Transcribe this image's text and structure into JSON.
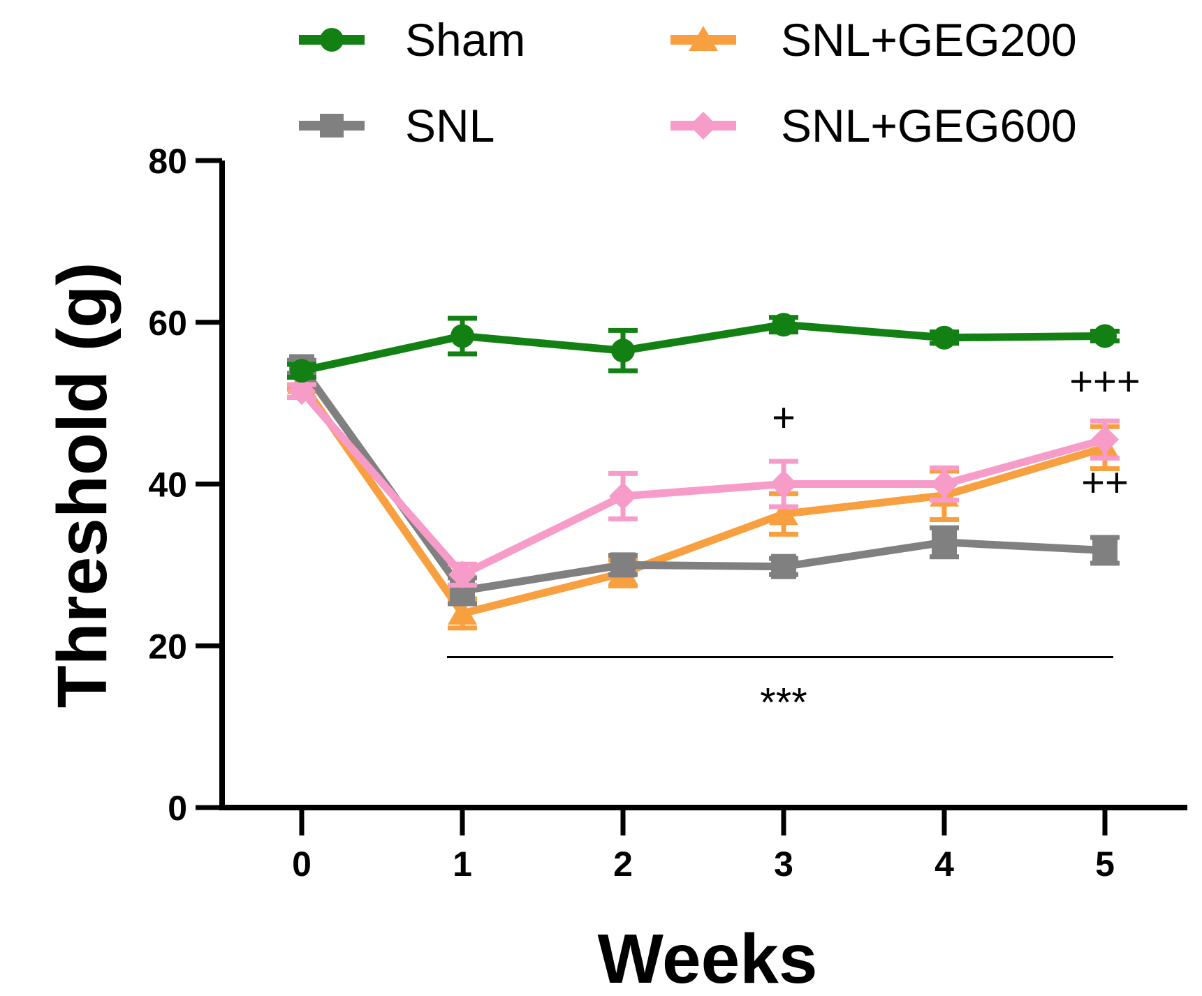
{
  "chart_data": {
    "type": "line",
    "title": "",
    "xlabel": "Weeks",
    "ylabel": "Threshold (g)",
    "x": [
      0,
      1,
      2,
      3,
      4,
      5
    ],
    "x_tick_labels": [
      "0",
      "1",
      "2",
      "3",
      "4",
      "5"
    ],
    "ylim": [
      0,
      80
    ],
    "y_ticks": [
      0,
      20,
      40,
      60,
      80
    ],
    "y_tick_labels": [
      "0",
      "20",
      "40",
      "60",
      "80"
    ],
    "grid": false,
    "legend_position": "top",
    "series": [
      {
        "name": "Sham",
        "color": "#138013",
        "marker": "circle",
        "values": [
          54,
          58.3,
          56.5,
          59.7,
          58.1,
          58.3
        ],
        "errors": [
          0.8,
          2.2,
          2.5,
          0.9,
          0.7,
          0.6
        ]
      },
      {
        "name": "SNL",
        "color": "#808080",
        "marker": "square",
        "values": [
          54.5,
          26.8,
          30,
          29.8,
          32.8,
          31.8
        ],
        "errors": [
          0.8,
          1.6,
          1.2,
          1.0,
          1.8,
          1.6
        ]
      },
      {
        "name": "SNL+GEG200",
        "color": "#F8A040",
        "marker": "triangle",
        "values": [
          52.5,
          24,
          29,
          36.3,
          38.6,
          44.5
        ],
        "errors": [
          0.8,
          1.8,
          1.6,
          2.5,
          3.0,
          2.6
        ]
      },
      {
        "name": "SNL+GEG600",
        "color": "#F79CC9",
        "marker": "diamond",
        "values": [
          51.5,
          28.8,
          38.5,
          40,
          40,
          45.5
        ],
        "errors": [
          0.8,
          1.3,
          2.8,
          2.8,
          2.0,
          2.3
        ]
      }
    ],
    "annotations": [
      {
        "id": "sig-bar",
        "text": "***",
        "x_from": 1,
        "x_to": 5,
        "y": 18.6
      },
      {
        "id": "week3-plus",
        "text": "+",
        "x": 3,
        "y": 46.5
      },
      {
        "id": "week5-ppp",
        "text": "+++",
        "x": 5,
        "y": 51
      },
      {
        "id": "week5-pp",
        "text": "++",
        "x": 5,
        "y": 38.5
      }
    ]
  }
}
